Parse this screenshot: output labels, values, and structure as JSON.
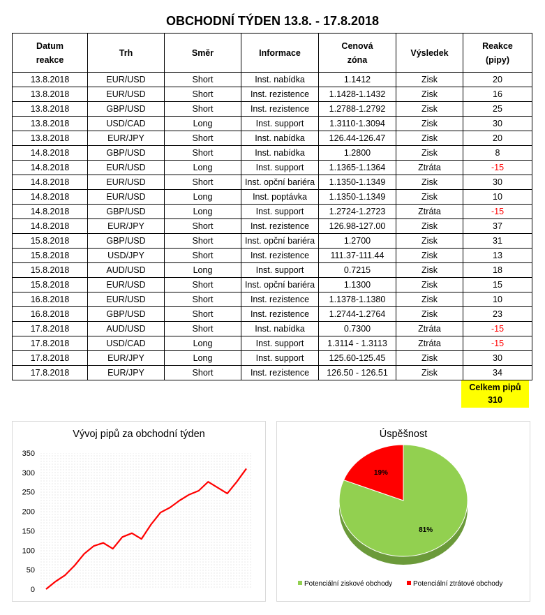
{
  "title": "OBCHODNÍ TÝDEN 13.8. - 17.8.2018",
  "table": {
    "headers": [
      "Datum\nreakce",
      "Trh",
      "Směr",
      "Informace",
      "Cenová\nzóna",
      "Výsledek",
      "Reakce\n(pipy)"
    ],
    "rows": [
      [
        "13.8.2018",
        "EUR/USD",
        "Short",
        "Inst. nabídka",
        "1.1412",
        "Zisk",
        "20"
      ],
      [
        "13.8.2018",
        "EUR/USD",
        "Short",
        "Inst. rezistence",
        "1.1428-1.1432",
        "Zisk",
        "16"
      ],
      [
        "13.8.2018",
        "GBP/USD",
        "Short",
        "Inst. rezistence",
        "1.2788-1.2792",
        "Zisk",
        "25"
      ],
      [
        "13.8.2018",
        "USD/CAD",
        "Long",
        "Inst. support",
        "1.3110-1.3094",
        "Zisk",
        "30"
      ],
      [
        "13.8.2018",
        "EUR/JPY",
        "Short",
        "Inst. nabídka",
        "126.44-126.47",
        "Zisk",
        "20"
      ],
      [
        "14.8.2018",
        "GBP/USD",
        "Short",
        "Inst. nabídka",
        "1.2800",
        "Zisk",
        "8"
      ],
      [
        "14.8.2018",
        "EUR/USD",
        "Long",
        "Inst. support",
        "1.1365-1.1364",
        "Ztráta",
        "-15"
      ],
      [
        "14.8.2018",
        "EUR/USD",
        "Short",
        "Inst. opční bariéra",
        "1.1350-1.1349",
        "Zisk",
        "30"
      ],
      [
        "14.8.2018",
        "EUR/USD",
        "Long",
        "Inst. poptávka",
        "1.1350-1.1349",
        "Zisk",
        "10"
      ],
      [
        "14.8.2018",
        "GBP/USD",
        "Long",
        "Inst. support",
        "1.2724-1.2723",
        "Ztráta",
        "-15"
      ],
      [
        "14.8.2018",
        "EUR/JPY",
        "Short",
        "Inst. rezistence",
        "126.98-127.00",
        "Zisk",
        "37"
      ],
      [
        "15.8.2018",
        "GBP/USD",
        "Short",
        "Inst. opční bariéra",
        "1.2700",
        "Zisk",
        "31"
      ],
      [
        "15.8.2018",
        "USD/JPY",
        "Short",
        "Inst. rezistence",
        "111.37-111.44",
        "Zisk",
        "13"
      ],
      [
        "15.8.2018",
        "AUD/USD",
        "Long",
        "Inst. support",
        "0.7215",
        "Zisk",
        "18"
      ],
      [
        "15.8.2018",
        "EUR/USD",
        "Short",
        "Inst. opční bariéra",
        "1.1300",
        "Zisk",
        "15"
      ],
      [
        "16.8.2018",
        "EUR/USD",
        "Short",
        "Inst. rezistence",
        "1.1378-1.1380",
        "Zisk",
        "10"
      ],
      [
        "16.8.2018",
        "GBP/USD",
        "Short",
        "Inst. rezistence",
        "1.2744-1.2764",
        "Zisk",
        "23"
      ],
      [
        "17.8.2018",
        "AUD/USD",
        "Short",
        "Inst. nabídka",
        "0.7300",
        "Ztráta",
        "-15"
      ],
      [
        "17.8.2018",
        "USD/CAD",
        "Long",
        "Inst. support",
        "1.3114 - 1.3113",
        "Ztráta",
        "-15"
      ],
      [
        "17.8.2018",
        "EUR/JPY",
        "Long",
        "Inst. support",
        "125.60-125.45",
        "Zisk",
        "30"
      ],
      [
        "17.8.2018",
        "EUR/JPY",
        "Short",
        "Inst. rezistence",
        "126.50 - 126.51",
        "Zisk",
        "34"
      ]
    ]
  },
  "total": {
    "label": "Celkem pipů",
    "value": "310"
  },
  "colors": {
    "line": "#ff0000",
    "pie_win": "#92d050",
    "pie_loss": "#ff0000",
    "highlight": "#ffff00"
  },
  "chart_data": [
    {
      "type": "line",
      "title": "Vývoj pipů za obchodní týden",
      "xlabel": "",
      "ylabel": "",
      "ylim": [
        0,
        350
      ],
      "yticks": [
        0,
        50,
        100,
        150,
        200,
        250,
        300,
        350
      ],
      "grid": true,
      "series": [
        {
          "values": [
            0,
            20,
            36,
            61,
            91,
            111,
            119,
            104,
            134,
            144,
            129,
            166,
            197,
            210,
            228,
            243,
            253,
            276,
            261,
            246,
            276,
            310
          ]
        }
      ]
    },
    {
      "type": "pie",
      "title": "Úspěšnost",
      "labels": [
        "Potenciální ziskové obchody",
        "Potenciální ztrátové obchody"
      ],
      "values": [
        81,
        19
      ],
      "data_labels": [
        "81%",
        "19%"
      ],
      "legend": "bottom"
    }
  ]
}
